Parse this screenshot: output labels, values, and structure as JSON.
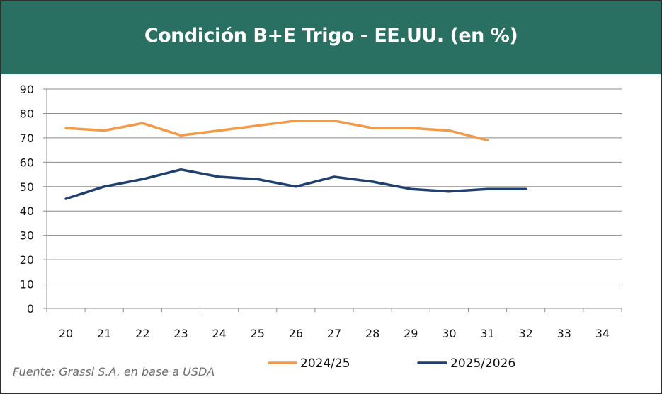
{
  "chart_data": {
    "type": "line",
    "title": "Condición B+E Trigo - EE.UU. (en %)",
    "xlabel": "",
    "ylabel": "",
    "x": [
      20,
      21,
      22,
      23,
      24,
      25,
      26,
      27,
      28,
      29,
      30,
      31,
      32,
      33,
      34
    ],
    "ylim": [
      0,
      90
    ],
    "yticks": [
      0,
      10,
      20,
      30,
      40,
      50,
      60,
      70,
      80,
      90
    ],
    "grid": true,
    "legend_position": "bottom",
    "series": [
      {
        "name": "2024/25",
        "color": "#f39a4a",
        "x": [
          20,
          21,
          22,
          23,
          24,
          25,
          26,
          27,
          28,
          29,
          30,
          31
        ],
        "values": [
          74,
          73,
          76,
          71,
          73,
          75,
          77,
          77,
          74,
          74,
          73,
          69
        ]
      },
      {
        "name": "2025/2026",
        "color": "#1f3f6e",
        "x": [
          20,
          21,
          22,
          23,
          24,
          25,
          26,
          27,
          28,
          29,
          30,
          31,
          32
        ],
        "values": [
          45,
          50,
          53,
          57,
          54,
          53,
          50,
          54,
          52,
          49,
          48,
          49,
          49
        ]
      }
    ]
  },
  "colors": {
    "header": "#2a7062",
    "grid": "#8c8c8c"
  },
  "source": "Fuente: Grassi S.A. en base a USDA"
}
